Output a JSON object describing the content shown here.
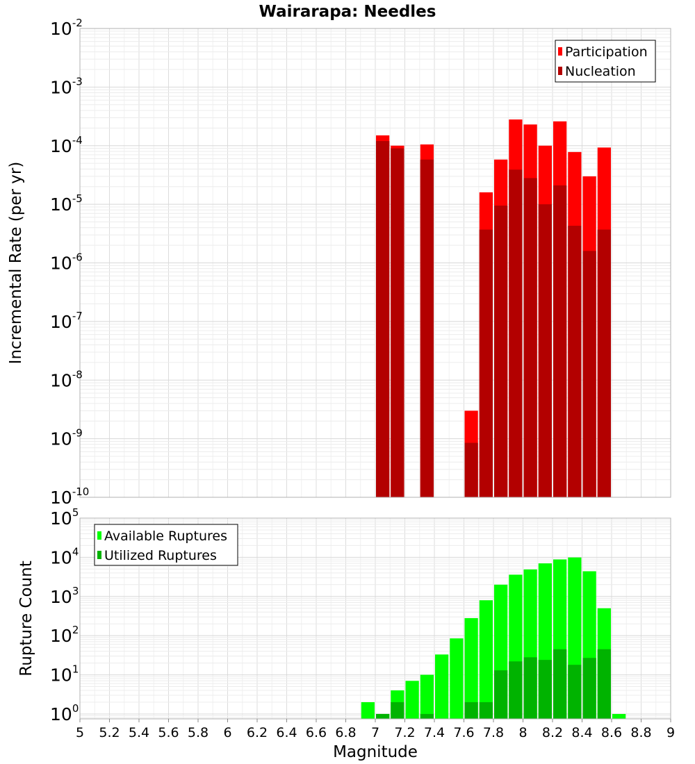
{
  "chart_data": [
    {
      "type": "bar",
      "title": "Wairarapa: Needles",
      "xlabel": "",
      "ylabel": "Incremental Rate (per yr)",
      "yscale": "log",
      "xlim": [
        5,
        9
      ],
      "ylim": [
        1e-10,
        0.01
      ],
      "grid": true,
      "legend_position": "top-right",
      "bin_width": 0.1,
      "series": [
        {
          "name": "Participation",
          "color": "#ff0000",
          "x": [
            7.05,
            7.15,
            7.35,
            7.65,
            7.75,
            7.85,
            7.95,
            8.05,
            8.15,
            8.25,
            8.35,
            8.45,
            8.55
          ],
          "values": [
            0.00015,
            0.0001,
            0.000105,
            3e-09,
            1.6e-05,
            5.8e-05,
            0.00028,
            0.00023,
            0.0001,
            0.00026,
            7.8e-05,
            3e-05,
            9.3e-05
          ]
        },
        {
          "name": "Nucleation",
          "color": "#b30000",
          "x": [
            7.05,
            7.15,
            7.35,
            7.65,
            7.75,
            7.85,
            7.95,
            8.05,
            8.15,
            8.25,
            8.35,
            8.45,
            8.55
          ],
          "values": [
            0.00012,
            9e-05,
            5.8e-05,
            8.5e-10,
            3.7e-06,
            9.5e-06,
            3.9e-05,
            2.8e-05,
            1e-05,
            2.1e-05,
            4.3e-06,
            1.6e-06,
            3.7e-06
          ]
        }
      ]
    },
    {
      "type": "bar",
      "title": "",
      "xlabel": "Magnitude",
      "ylabel": "Rupture Count",
      "yscale": "log",
      "xlim": [
        5,
        9
      ],
      "ylim": [
        0.75,
        100000.0
      ],
      "xticks": [
        "5",
        "5.2",
        "5.4",
        "5.6",
        "5.8",
        "6",
        "6.2",
        "6.4",
        "6.6",
        "6.8",
        "7",
        "7.2",
        "7.4",
        "7.6",
        "7.8",
        "8",
        "8.2",
        "8.4",
        "8.6",
        "8.8",
        "9"
      ],
      "grid": true,
      "legend_position": "top-left",
      "bin_width": 0.1,
      "series": [
        {
          "name": "Available Ruptures",
          "color": "#00ff00",
          "x": [
            6.95,
            7.05,
            7.15,
            7.25,
            7.35,
            7.45,
            7.55,
            7.65,
            7.75,
            7.85,
            7.95,
            8.05,
            8.15,
            8.25,
            8.35,
            8.45,
            8.55,
            8.65
          ],
          "values": [
            2,
            1,
            4,
            7,
            10,
            33,
            85,
            280,
            800,
            2000,
            3600,
            4900,
            7000,
            8800,
            9900,
            4400,
            500,
            1
          ]
        },
        {
          "name": "Utilized Ruptures",
          "color": "#00b300",
          "x": [
            7.05,
            7.15,
            7.35,
            7.65,
            7.75,
            7.85,
            7.95,
            8.05,
            8.15,
            8.25,
            8.35,
            8.45,
            8.55
          ],
          "values": [
            1,
            2,
            1,
            2,
            2,
            13,
            22,
            28,
            24,
            45,
            18,
            27,
            45
          ]
        }
      ]
    }
  ]
}
